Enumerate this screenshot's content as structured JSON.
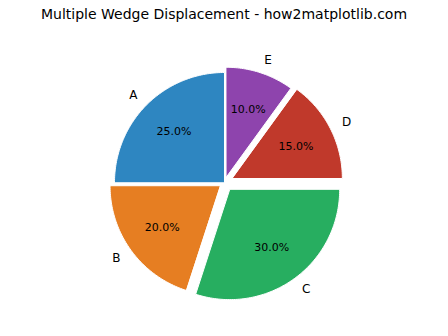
{
  "chart_data": {
    "type": "pie",
    "title": "Multiple Wedge Displacement - how2matplotlib.com",
    "categories": [
      "A",
      "B",
      "C",
      "D",
      "E"
    ],
    "values": [
      25.0,
      20.0,
      30.0,
      15.0,
      10.0
    ],
    "value_labels": [
      "25.0%",
      "20.0%",
      "30.0%",
      "15.0%",
      "10.0%"
    ],
    "colors": [
      "#2E86C1",
      "#E67E22",
      "#27AE60",
      "#C0392B",
      "#8E44AD"
    ],
    "data_labels": true
  }
}
